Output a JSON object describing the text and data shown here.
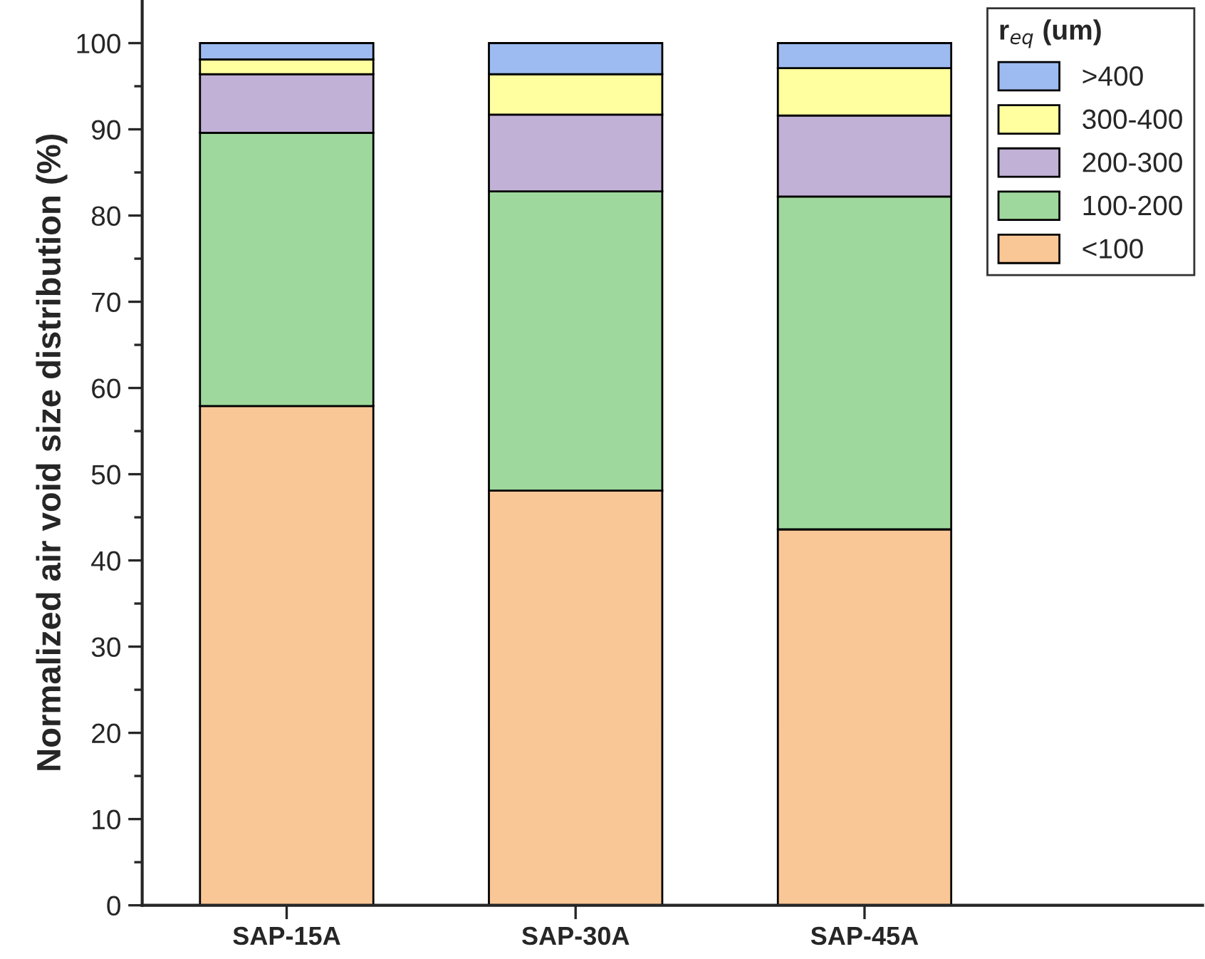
{
  "chart_data": {
    "type": "bar",
    "stacked": true,
    "ylabel": "Normalized air void size distribution (%)",
    "legend_title": "r$_{eq}$ (um)",
    "legend": "top right",
    "categories": [
      "SAP-15A",
      "SAP-30A",
      "SAP-45A"
    ],
    "series": [
      {
        "name": "<100",
        "color": "#f9c796",
        "values": [
          57.9,
          48.1,
          43.6
        ]
      },
      {
        "name": "100-200",
        "color": "#9fd89c",
        "values": [
          31.7,
          34.7,
          38.6
        ]
      },
      {
        "name": "200-300",
        "color": "#c2b1d6",
        "values": [
          6.8,
          8.9,
          9.4
        ]
      },
      {
        "name": "300-400",
        "color": "#ffff9f",
        "values": [
          1.7,
          4.7,
          5.5
        ]
      },
      {
        "name": ">400",
        "color": "#9dbbf0",
        "values": [
          1.9,
          3.6,
          2.9
        ]
      }
    ],
    "ylim": [
      0,
      105
    ],
    "yticks": [
      0,
      10,
      20,
      30,
      40,
      50,
      60,
      70,
      80,
      90,
      100
    ]
  }
}
